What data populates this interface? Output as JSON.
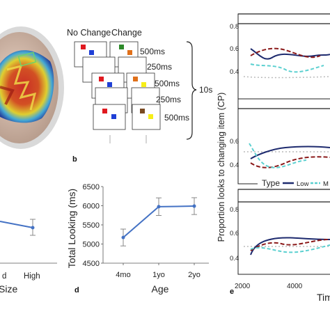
{
  "panel_a": {
    "label": ""
  },
  "panel_b": {
    "label": "b",
    "col_no_change": "No Change",
    "col_change": "Change",
    "durations": [
      "500ms",
      "250ms",
      "500ms",
      "250ms",
      "500ms"
    ],
    "total": "10s",
    "colors": {
      "red": "#e0191f",
      "blue": "#1f3fd6",
      "green": "#2d8a2a",
      "orange": "#e0701a",
      "yellow": "#f6ee18",
      "brown": "#7a4a22"
    }
  },
  "panel_c": {
    "label": "",
    "xlabel": "Size",
    "ticks_x": [
      "d",
      "High"
    ]
  },
  "panel_d": {
    "label": "d",
    "xlabel": "Age",
    "ylabel": "Total Looking (ms)",
    "ticks_x": [
      "4mo",
      "1yo",
      "2yo"
    ],
    "ticks_y": [
      "4500",
      "5000",
      "5500",
      "6000",
      "6500"
    ]
  },
  "panel_e": {
    "label": "e",
    "ylabel": "Proportion looks to changing item (CP)",
    "xlabel": "Tim",
    "ticks_x": [
      "2000",
      "4000"
    ],
    "ticks_y": [
      "0.8",
      "0.6",
      "0.4"
    ],
    "legend_title": "Type",
    "legend_items": [
      "Low",
      "M"
    ]
  },
  "chart_data": [
    {
      "type": "line",
      "xlabel": "Age",
      "ylabel": "Total Looking (ms)",
      "categories": [
        "4mo",
        "1yo",
        "2yo"
      ],
      "values": [
        5170,
        5975,
        5990
      ],
      "error": [
        220,
        230,
        220
      ],
      "ylim": [
        4500,
        6500
      ],
      "color": "#4472c4"
    },
    {
      "type": "line",
      "xlabel": "Size",
      "categories": [
        "d",
        "High"
      ],
      "values": [
        null,
        null
      ],
      "color": "#4472c4"
    }
  ]
}
